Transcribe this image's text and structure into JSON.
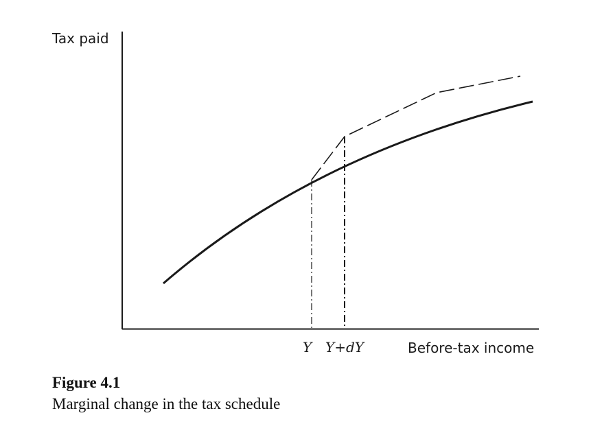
{
  "figure": {
    "y_axis_label": "Tax paid",
    "x_axis_label": "Before-tax income",
    "tick_y": "Y",
    "tick_y_plus_dy": "Y+dY"
  },
  "caption": {
    "title": "Figure 4.1",
    "text": "Marginal change in the tax schedule"
  }
}
